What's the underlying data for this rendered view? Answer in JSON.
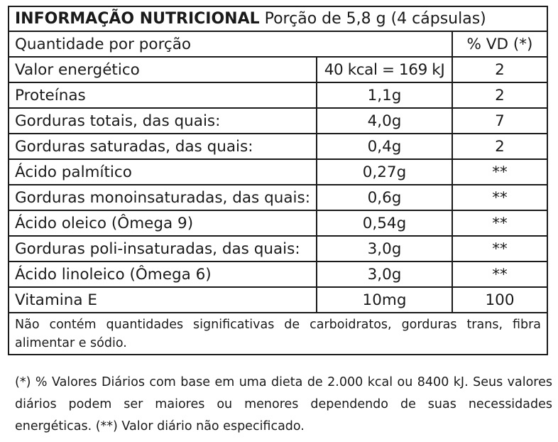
{
  "header": {
    "title_bold": "INFORMAÇÃO NUTRICIONAL",
    "title_rest": " Porção de 5,8 g (4 cápsulas)"
  },
  "columns": {
    "quantity_label": "Quantidade por porção",
    "dv_label": "% VD (*)"
  },
  "rows": [
    {
      "name": "Valor energético",
      "amount": "40 kcal = 169 kJ",
      "dv": "2"
    },
    {
      "name": "Proteínas",
      "amount": "1,1g",
      "dv": "2"
    },
    {
      "name": "Gorduras totais, das quais:",
      "amount": "4,0g",
      "dv": "7"
    },
    {
      "name": "Gorduras saturadas, das quais:",
      "amount": "0,4g",
      "dv": "2"
    },
    {
      "name": "Ácido palmítico",
      "amount": "0,27g",
      "dv": "**"
    },
    {
      "name": "Gorduras monoinsaturadas, das quais:",
      "amount": "0,6g",
      "dv": "**"
    },
    {
      "name": "Ácido oleico (Ômega 9)",
      "amount": "0,54g",
      "dv": "**"
    },
    {
      "name": "Gorduras poli-insaturadas, das quais:",
      "amount": "3,0g",
      "dv": "**"
    },
    {
      "name": "Ácido linoleico (Ômega 6)",
      "amount": "3,0g",
      "dv": "**"
    },
    {
      "name": "Vitamina E",
      "amount": "10mg",
      "dv": "100"
    }
  ],
  "note": "Não contém quantidades significativas de carboidratos, gorduras trans, fibra alimentar e sódio.",
  "footnote": "(*) % Valores Diários com base em uma dieta de 2.000 kcal ou 8400 kJ. Seus valores diários podem ser maiores ou menores dependendo de suas necessidades energéticas. (**) Valor diário não especificado."
}
